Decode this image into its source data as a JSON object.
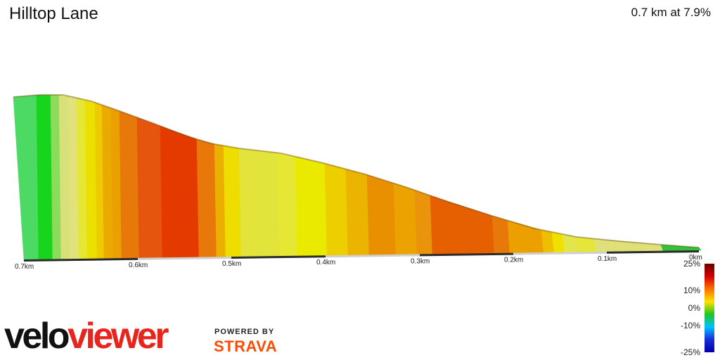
{
  "header": {
    "title": "Hilltop Lane",
    "summary": "0.7 km at 7.9%"
  },
  "branding": {
    "logo_part1": "velo",
    "logo_part2": "viewer",
    "powered_by": "POWERED BY",
    "partner": "STRAVA"
  },
  "colors": {
    "brand_red": "#e8251d",
    "strava_orange": "#fc4c02"
  },
  "chart_data": {
    "type": "area",
    "title": "Hilltop Lane",
    "subtitle": "0.7 km at 7.9%",
    "x_direction": "descending",
    "x_ticks": [
      "0.7km",
      "0.6km",
      "0.5km",
      "0.4km",
      "0.3km",
      "0.2km",
      "0.1km",
      "0km"
    ],
    "distance_km": [
      0.7,
      0.6,
      0.5,
      0.4,
      0.3,
      0.2,
      0.1,
      0.0
    ],
    "segments": [
      {
        "color": "#4cd964"
      },
      {
        "color": "#17d41c"
      },
      {
        "color": "#8bdc5a"
      },
      {
        "color": "#d8e07a"
      },
      {
        "color": "#e2e27c"
      },
      {
        "color": "#e6e635"
      },
      {
        "color": "#ece000"
      },
      {
        "color": "#eeca00"
      },
      {
        "color": "#ebaa00"
      },
      {
        "color": "#e9a000"
      },
      {
        "color": "#e7780a"
      },
      {
        "color": "#e5550d"
      },
      {
        "color": "#e43a00"
      },
      {
        "color": "#e8780a"
      },
      {
        "color": "#ebaf00"
      },
      {
        "color": "#efdc00"
      },
      {
        "color": "#e2e33b"
      },
      {
        "color": "#e6e635"
      },
      {
        "color": "#eaea00"
      },
      {
        "color": "#edcf00"
      },
      {
        "color": "#ebb400"
      },
      {
        "color": "#e99000"
      },
      {
        "color": "#eaa300"
      },
      {
        "color": "#e9940a"
      },
      {
        "color": "#e65f00"
      },
      {
        "color": "#e8780a"
      },
      {
        "color": "#eba000"
      },
      {
        "color": "#eebf00"
      },
      {
        "color": "#efe000"
      },
      {
        "color": "#e3e64a"
      },
      {
        "color": "#e5e53a"
      },
      {
        "color": "#dfe07a"
      },
      {
        "color": "#32c33a"
      }
    ],
    "legend": {
      "type": "gradient",
      "labels": [
        "25%",
        "10%",
        "0%",
        "-10%",
        "-25%"
      ],
      "values": [
        25,
        10,
        0,
        -10,
        -25
      ],
      "colors": [
        "#6b0000",
        "#d40000",
        "#ff7000",
        "#ffe100",
        "#21c521",
        "#00c2ff",
        "#1a2bd8",
        "#0000a8"
      ]
    }
  }
}
